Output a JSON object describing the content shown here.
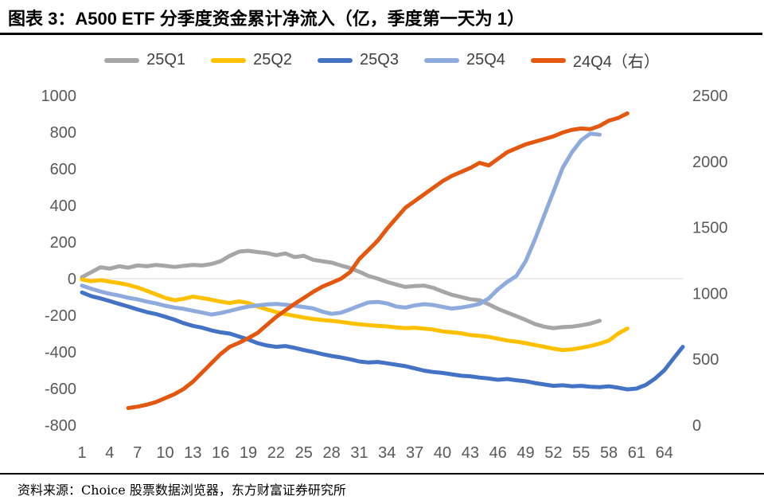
{
  "chart_data": {
    "type": "line",
    "title": "图表 3：A500 ETF 分季度资金累计净流入（亿，季度第一天为 1）",
    "source": "资料来源：Choice 股票数据浏览器，东方财富证券研究所",
    "legend_position": "top",
    "grid": "zero-line-only",
    "x_axis": {
      "min": 1,
      "max": 66,
      "ticks": [
        1,
        4,
        7,
        10,
        13,
        16,
        19,
        22,
        25,
        28,
        31,
        34,
        37,
        40,
        43,
        46,
        49,
        52,
        55,
        58,
        61,
        64
      ]
    },
    "left_axis": {
      "min": -800,
      "max": 1000,
      "ticks": [
        1000,
        800,
        600,
        400,
        200,
        0,
        -200,
        -400,
        -600,
        -800
      ]
    },
    "right_axis": {
      "min": 0,
      "max": 2500,
      "ticks": [
        2500,
        2000,
        1500,
        1000,
        500,
        0
      ]
    },
    "zero_line_color": "#d9d9d9",
    "tick_color": "#595959",
    "series": [
      {
        "name": "25Q1",
        "axis": "left",
        "color": "#a6a6a6",
        "start_day": 1,
        "values": [
          8,
          35,
          62,
          55,
          68,
          60,
          72,
          68,
          75,
          70,
          64,
          70,
          75,
          72,
          80,
          95,
          125,
          148,
          152,
          145,
          140,
          128,
          138,
          118,
          125,
          103,
          95,
          88,
          72,
          58,
          38,
          15,
          0,
          -18,
          -32,
          -45,
          -40,
          -38,
          -50,
          -70,
          -88,
          -100,
          -112,
          -118,
          -140,
          -165,
          -185,
          -205,
          -225,
          -248,
          -262,
          -270,
          -265,
          -262,
          -255,
          -245,
          -230
        ]
      },
      {
        "name": "25Q2",
        "axis": "left",
        "color": "#ffc000",
        "start_day": 1,
        "values": [
          -5,
          -14,
          -8,
          -16,
          -24,
          -34,
          -48,
          -66,
          -85,
          -105,
          -118,
          -110,
          -98,
          -106,
          -115,
          -125,
          -133,
          -124,
          -133,
          -152,
          -168,
          -182,
          -193,
          -203,
          -212,
          -220,
          -226,
          -230,
          -236,
          -243,
          -249,
          -254,
          -258,
          -261,
          -266,
          -270,
          -268,
          -273,
          -278,
          -288,
          -293,
          -298,
          -308,
          -312,
          -318,
          -328,
          -338,
          -344,
          -352,
          -362,
          -372,
          -382,
          -390,
          -386,
          -378,
          -368,
          -355,
          -338,
          -300,
          -272
        ]
      },
      {
        "name": "25Q3",
        "axis": "left",
        "color": "#4472c4",
        "start_day": 1,
        "values": [
          -75,
          -95,
          -108,
          -122,
          -138,
          -152,
          -168,
          -182,
          -193,
          -208,
          -224,
          -243,
          -258,
          -268,
          -282,
          -293,
          -300,
          -316,
          -332,
          -352,
          -365,
          -372,
          -368,
          -378,
          -390,
          -400,
          -412,
          -422,
          -430,
          -440,
          -452,
          -458,
          -455,
          -462,
          -470,
          -478,
          -490,
          -502,
          -510,
          -515,
          -522,
          -530,
          -533,
          -540,
          -545,
          -552,
          -548,
          -555,
          -560,
          -570,
          -578,
          -585,
          -582,
          -588,
          -585,
          -590,
          -592,
          -588,
          -595,
          -605,
          -600,
          -580,
          -545,
          -500,
          -435,
          -372
        ]
      },
      {
        "name": "25Q4",
        "axis": "left",
        "color": "#8faadc",
        "start_day": 1,
        "values": [
          -38,
          -55,
          -70,
          -82,
          -92,
          -104,
          -113,
          -125,
          -135,
          -148,
          -158,
          -165,
          -175,
          -185,
          -196,
          -188,
          -176,
          -163,
          -152,
          -146,
          -141,
          -138,
          -142,
          -148,
          -155,
          -162,
          -180,
          -192,
          -186,
          -168,
          -148,
          -130,
          -127,
          -135,
          -152,
          -158,
          -146,
          -139,
          -144,
          -154,
          -163,
          -158,
          -149,
          -138,
          -108,
          -58,
          -18,
          15,
          95,
          215,
          345,
          475,
          605,
          690,
          756,
          792,
          786
        ]
      },
      {
        "name": "24Q4（右）",
        "axis": "right",
        "color": "#e4570e",
        "start_day": 6,
        "values": [
          130,
          140,
          155,
          175,
          205,
          235,
          275,
          330,
          400,
          470,
          540,
          595,
          625,
          660,
          700,
          760,
          820,
          870,
          920,
          965,
          1010,
          1050,
          1080,
          1110,
          1160,
          1260,
          1330,
          1400,
          1490,
          1570,
          1650,
          1700,
          1750,
          1800,
          1850,
          1890,
          1920,
          1950,
          1990,
          1970,
          2020,
          2070,
          2100,
          2130,
          2150,
          2170,
          2190,
          2220,
          2240,
          2250,
          2245,
          2270,
          2310,
          2330,
          2365
        ]
      }
    ]
  }
}
